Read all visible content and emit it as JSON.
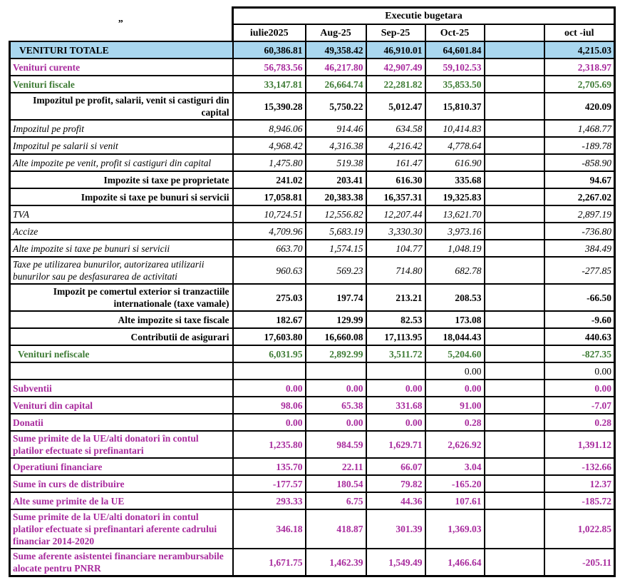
{
  "header": {
    "corner_mark": "”",
    "group_title": "Executie bugetara",
    "columns": [
      "iulie2025",
      "Aug-25",
      "Sep-25",
      "Oct-25",
      "",
      "oct -iul"
    ]
  },
  "colors": {
    "highlight_blue": "#a9d7ef",
    "magenta_text": "#a82b9d",
    "green_text": "#3e7b35",
    "border_black": "#000000"
  },
  "table": {
    "rows": [
      {
        "label": "VENITURI TOTALE",
        "style": "total",
        "values": [
          "60,386.81",
          "49,358.42",
          "46,910.01",
          "64,601.84",
          "",
          "4,215.03"
        ]
      },
      {
        "label": "Venituri curente",
        "style": "magenta",
        "values": [
          "56,783.56",
          "46,217.80",
          "42,907.49",
          "59,102.53",
          "",
          "2,318.97"
        ]
      },
      {
        "label": "Venituri fiscale",
        "style": "green",
        "values": [
          "33,147.81",
          "26,664.74",
          "22,281.82",
          "35,853.50",
          "",
          "2,705.69"
        ]
      },
      {
        "label": "Impozitul pe profit, salarii, venit si castiguri din capital",
        "style": "summary",
        "values": [
          "15,390.28",
          "5,750.22",
          "5,012.47",
          "15,810.37",
          "",
          "420.09"
        ]
      },
      {
        "label": "Impozitul pe profit",
        "style": "italic",
        "values": [
          "8,946.06",
          "914.46",
          "634.58",
          "10,414.83",
          "",
          "1,468.77"
        ]
      },
      {
        "label": "Impozitul pe salarii si venit",
        "style": "italic",
        "values": [
          "4,968.42",
          "4,316.38",
          "4,216.42",
          "4,778.64",
          "",
          "-189.78"
        ]
      },
      {
        "label": "Alte impozite pe venit, profit si castiguri din capital",
        "style": "italic",
        "values": [
          "1,475.80",
          "519.38",
          "161.47",
          "616.90",
          "",
          "-858.90"
        ]
      },
      {
        "label": "Impozite si taxe pe proprietate",
        "style": "summary",
        "values": [
          "241.02",
          "203.41",
          "616.30",
          "335.68",
          "",
          "94.67"
        ]
      },
      {
        "label": "Impozite si taxe pe bunuri si servicii",
        "style": "summary",
        "values": [
          "17,058.81",
          "20,383.38",
          "16,357.31",
          "19,325.83",
          "",
          "2,267.02"
        ]
      },
      {
        "label": "TVA",
        "style": "italic",
        "values": [
          "10,724.51",
          "12,556.82",
          "12,207.44",
          "13,621.70",
          "",
          "2,897.19"
        ]
      },
      {
        "label": "Accize",
        "style": "italic",
        "values": [
          "4,709.96",
          "5,683.19",
          "3,330.30",
          "3,973.16",
          "",
          "-736.80"
        ]
      },
      {
        "label": "Alte impozite si taxe pe bunuri si servicii",
        "style": "italic",
        "values": [
          "663.70",
          "1,574.15",
          "104.77",
          "1,048.19",
          "",
          "384.49"
        ]
      },
      {
        "label": "Taxe pe utilizarea bunurilor, autorizarea utilizarii bunurilor sau pe desfasurarea de activitati",
        "style": "italic",
        "values": [
          "960.63",
          "569.23",
          "714.80",
          "682.78",
          "",
          "-277.85"
        ]
      },
      {
        "label": "Impozit pe comertul exterior si tranzactiile internationale (taxe vamale)",
        "style": "summary",
        "values": [
          "275.03",
          "197.74",
          "213.21",
          "208.53",
          "",
          "-66.50"
        ]
      },
      {
        "label": "Alte impozite si taxe fiscale",
        "style": "summary",
        "values": [
          "182.67",
          "129.99",
          "82.53",
          "173.08",
          "",
          "-9.60"
        ]
      },
      {
        "label": "Contributii de asigurari",
        "style": "summary",
        "values": [
          "17,603.80",
          "16,660.08",
          "17,113.95",
          "18,044.43",
          "",
          "440.63"
        ]
      },
      {
        "label": "Venituri nefiscale",
        "style": "green-indent",
        "values": [
          "6,031.95",
          "2,892.99",
          "3,511.72",
          "5,204.60",
          "",
          "-827.35"
        ]
      },
      {
        "label": "",
        "style": "plain",
        "values": [
          "",
          "",
          "",
          "0.00",
          "",
          "0.00"
        ]
      },
      {
        "label": "Subventii",
        "style": "magenta",
        "values": [
          "0.00",
          "0.00",
          "0.00",
          "0.00",
          "",
          "0.00"
        ]
      },
      {
        "label": "Venituri din capital",
        "style": "magenta",
        "values": [
          "98.06",
          "65.38",
          "331.68",
          "91.00",
          "",
          "-7.07"
        ]
      },
      {
        "label": "Donatii",
        "style": "magenta",
        "values": [
          "0.00",
          "0.00",
          "0.00",
          "0.28",
          "",
          "0.28"
        ]
      },
      {
        "label": "Sume primite de la UE/alti donatori în contul platilor efectuate si prefinantari",
        "style": "magenta",
        "values": [
          "1,235.80",
          "984.59",
          "1,629.71",
          "2,626.92",
          "",
          "1,391.12"
        ]
      },
      {
        "label": "Operatiuni financiare",
        "style": "magenta",
        "values": [
          "135.70",
          "22.11",
          "66.07",
          "3.04",
          "",
          "-132.66"
        ]
      },
      {
        "label": "Sume în curs de distribuire",
        "style": "magenta",
        "values": [
          "-177.57",
          "180.54",
          "79.82",
          "-165.20",
          "",
          "12.37"
        ]
      },
      {
        "label": "Alte sume primite de la UE",
        "style": "magenta",
        "values": [
          "293.33",
          "6.75",
          "44.36",
          "107.61",
          "",
          "-185.72"
        ]
      },
      {
        "label": "Sume primite de la UE/alti donatori in contul platilor efectuate si prefinantari aferente cadrului financiar 2014-2020",
        "style": "magenta",
        "values": [
          "346.18",
          "418.87",
          "301.39",
          "1,369.03",
          "",
          "1,022.85"
        ]
      },
      {
        "label": "Sume aferente asistentei financiare nerambursabile alocate pentru PNRR",
        "style": "magenta",
        "values": [
          "1,671.75",
          "1,462.39",
          "1,549.49",
          "1,466.64",
          "",
          "-205.11"
        ]
      }
    ]
  }
}
